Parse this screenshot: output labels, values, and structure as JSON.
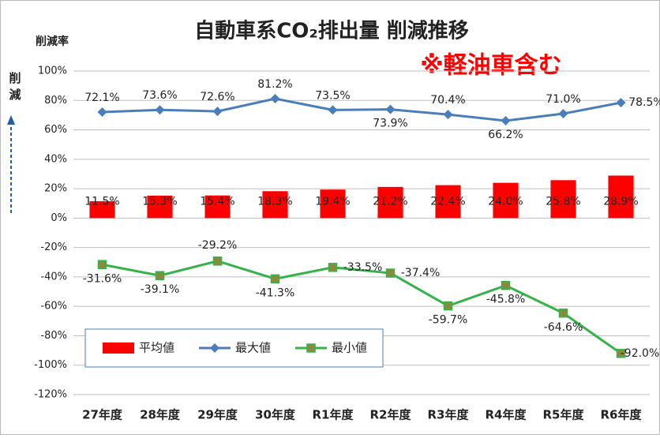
{
  "chart_data": {
    "type": "bar_line",
    "title": "自動車系CO₂排出量 削減推移",
    "annotation": "※軽油車含む",
    "y_label": "削減率",
    "y_side_label": "削減",
    "categories": [
      "27年度",
      "28年度",
      "29年度",
      "30年度",
      "R1年度",
      "R2年度",
      "R3年度",
      "R4年度",
      "R5年度",
      "R6年度"
    ],
    "series": [
      {
        "name": "平均値",
        "kind": "bar",
        "color": "#ff0000",
        "values": [
          11.5,
          15.3,
          15.4,
          18.3,
          19.4,
          21.2,
          22.4,
          24.0,
          25.8,
          28.9
        ],
        "value_labels": [
          "11.5%",
          "15.3%",
          "15.4%",
          "18.3%",
          "19.4%",
          "21.2%",
          "22.4%",
          "24.0%",
          "25.8%",
          "28.9%"
        ]
      },
      {
        "name": "最大値",
        "kind": "line",
        "marker": "diamond",
        "color": "#4a7ebb",
        "values": [
          72.1,
          73.6,
          72.6,
          81.2,
          73.5,
          73.9,
          70.4,
          66.2,
          71.0,
          78.5
        ],
        "value_labels": [
          "72.1%",
          "73.6%",
          "72.6%",
          "81.2%",
          "73.5%",
          "73.9%",
          "70.4%",
          "66.2%",
          "71.0%",
          "78.5%"
        ]
      },
      {
        "name": "最小値",
        "kind": "line",
        "marker": "square",
        "color": "#33b34a",
        "values": [
          -31.6,
          -39.1,
          -29.2,
          -41.3,
          -33.5,
          -37.4,
          -59.7,
          -45.8,
          -64.6,
          -92.0
        ],
        "value_labels": [
          "-31.6%",
          "-39.1%",
          "-29.2%",
          "-41.3%",
          "-33.5%",
          "-37.4%",
          "-59.7%",
          "-45.8%",
          "-64.6%",
          "-92.0%"
        ]
      }
    ],
    "ylim": [
      -120,
      100
    ],
    "yticks": [
      {
        "value": -120,
        "label": "-120%"
      },
      {
        "value": -100,
        "label": "-100%"
      },
      {
        "value": -80,
        "label": "-80%"
      },
      {
        "value": -60,
        "label": "-60%"
      },
      {
        "value": -40,
        "label": "-40%"
      },
      {
        "value": -20,
        "label": "-20%"
      },
      {
        "value": 0,
        "label": "0%"
      },
      {
        "value": 20,
        "label": "20%"
      },
      {
        "value": 40,
        "label": "40%"
      },
      {
        "value": 60,
        "label": "60%"
      },
      {
        "value": 80,
        "label": "80%"
      },
      {
        "value": 100,
        "label": "100%"
      }
    ],
    "grid": true,
    "legend": "lower left"
  }
}
